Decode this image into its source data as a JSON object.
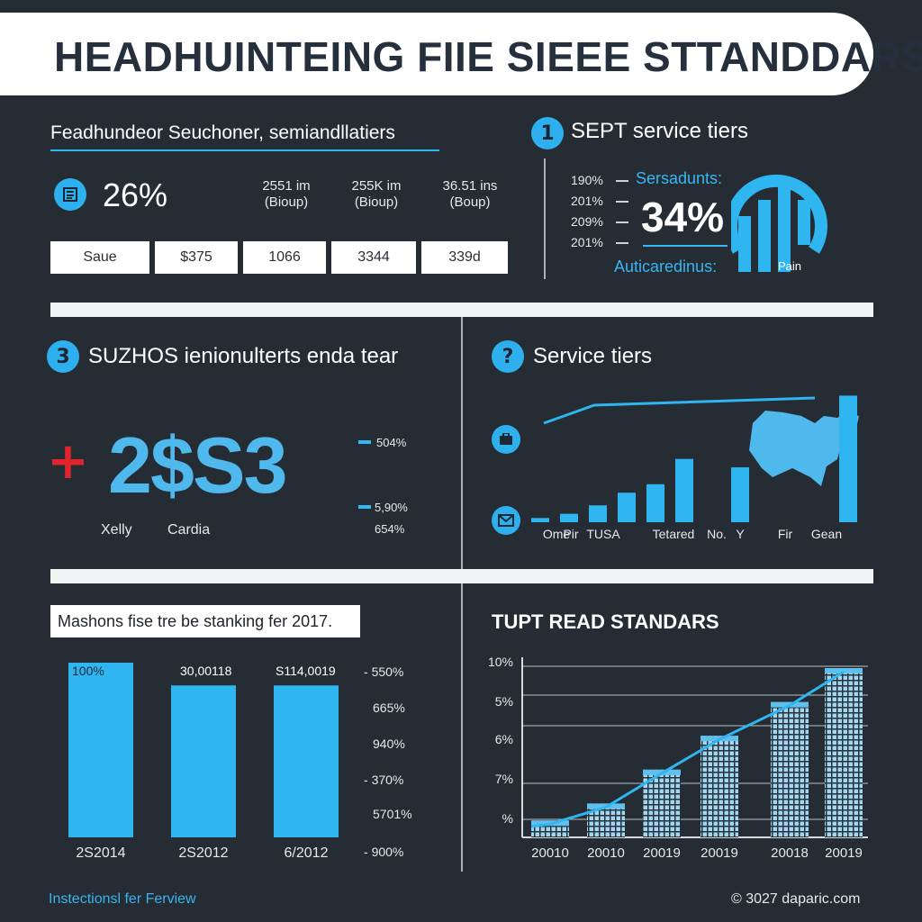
{
  "header": {
    "title": "HEADHUINTEING FIIE  SIEEE STTANDDARS"
  },
  "colors": {
    "background": "#262c33",
    "accent": "#2fb5ef",
    "white": "#ffffff",
    "red": "#e0242d"
  },
  "section1": {
    "title": "Feadhundeor Seuchoner, semiandllatiers",
    "icon": "list-icon",
    "percent": "26%",
    "stats": [
      {
        "line1": "2551 im",
        "line2": "(Bioup)"
      },
      {
        "line1": "255K im",
        "line2": "(Bioup)"
      },
      {
        "line1": "36.51 ins",
        "line2": "(Boup)"
      }
    ],
    "boxes": [
      "Saue",
      "$375",
      "1066",
      "3344",
      "339d"
    ]
  },
  "sept": {
    "badge": "1",
    "title": "SEPT service tiers",
    "ticks": [
      "190%",
      "201%",
      "209%",
      "201%"
    ],
    "label_top": "Sersadunts:",
    "big_value": "34%",
    "label_bottom": "Auticaredinus:",
    "logo_label": "Pain"
  },
  "section3": {
    "badge": "3",
    "title": "SUZHOS ienionulterts enda tear",
    "big_value": "2$S3",
    "names": [
      "Xelly",
      "Cardia"
    ],
    "pcts": [
      "504%",
      "5,90%",
      "654%"
    ]
  },
  "service_tiers": {
    "badge": "?",
    "title": "Service tiers",
    "icons": [
      "briefcase-icon",
      "mail-icon"
    ],
    "categories": [
      "Ome",
      "Pir",
      "TUSA",
      "Tetared",
      "No.",
      "Y",
      "Fir",
      "Gean"
    ]
  },
  "bottom_left": {
    "title": "Mashons fise tre be stanking fer 2017.",
    "right_labels": [
      "550%",
      "665%",
      "940%",
      "370%",
      "5701%",
      "900%"
    ]
  },
  "bottom_right": {
    "title": "TUPT READ STANDARS"
  },
  "footer": {
    "left": "Instectionsl fer Ferview",
    "right": "© 3027 daparic.com"
  },
  "chart_data": [
    {
      "type": "bar",
      "title": "Service tiers",
      "categories": [
        "Ome",
        "Pir",
        "TUSA",
        "Tetared",
        "No.",
        "Y",
        "Fir",
        "Gean"
      ],
      "values": [
        1,
        2,
        4,
        7,
        9,
        15,
        13,
        30
      ],
      "ylim": [
        0,
        32
      ]
    },
    {
      "type": "bar",
      "title": "Mashons fise tre be stanking fer 2017.",
      "categories": [
        "2S2014",
        "2S2012",
        "6/2012"
      ],
      "data_labels": [
        "100%",
        "30,00118",
        "S114,0019"
      ],
      "values": [
        100,
        87,
        87
      ],
      "ylim": [
        0,
        100
      ]
    },
    {
      "type": "bar",
      "title": "TUPT READ STANDARS",
      "categories": [
        "20010",
        "20010",
        "20019",
        "20019",
        "20018",
        "20019"
      ],
      "y_ticks": [
        "10%",
        "5%",
        "6%",
        "7%",
        "%"
      ],
      "values": [
        1,
        2,
        4,
        6,
        8,
        10
      ],
      "ylim": [
        0,
        10
      ],
      "grid": true
    }
  ]
}
